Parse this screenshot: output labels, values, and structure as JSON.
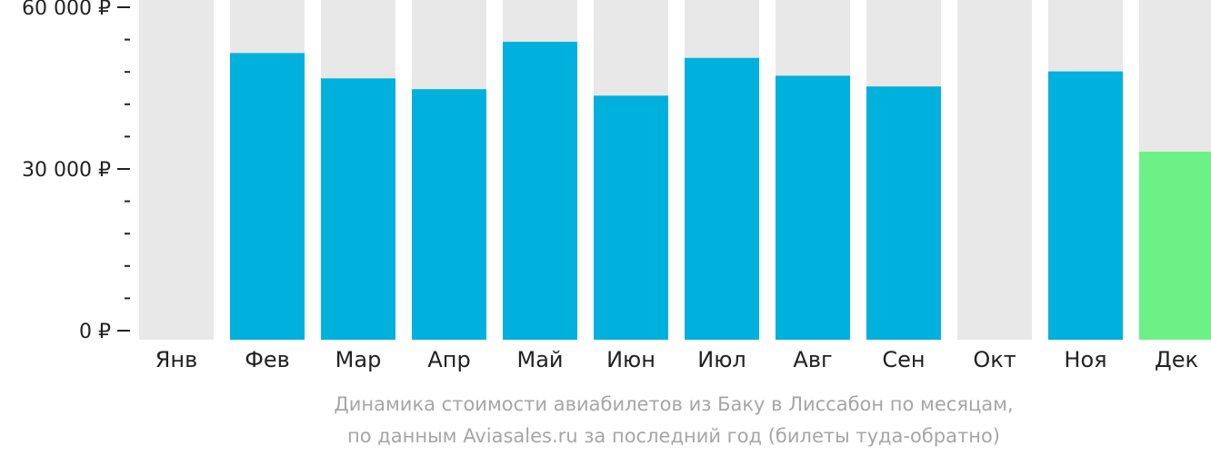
{
  "chart_data": {
    "type": "bar",
    "categories": [
      "Янв",
      "Фев",
      "Мар",
      "Апр",
      "Май",
      "Июн",
      "Июл",
      "Авг",
      "Сен",
      "Окт",
      "Ноя",
      "Дек"
    ],
    "values": [
      null,
      51500,
      46800,
      44800,
      53600,
      43600,
      50600,
      47300,
      45300,
      null,
      48100,
      33200
    ],
    "highlight_index": 11,
    "ylim": [
      0,
      60000
    ],
    "yticks": [
      {
        "value": 60000,
        "label": "60 000 ₽"
      },
      {
        "value": 30000,
        "label": "30 000 ₽"
      },
      {
        "value": 0,
        "label": "0 ₽"
      }
    ],
    "minor_ticks_between_major": 4,
    "caption_line1": "Динамика стоимости авиабилетов из Баку в Лиссабон по месяцам,",
    "caption_line2": "по данным Aviasales.ru за последний год (билеты туда-обратно)",
    "colors": {
      "bar": "#00b0dd",
      "highlight": "#6cf187",
      "track": "#e8e8e8",
      "tick": "#222222",
      "caption": "#a6a6a6"
    }
  }
}
